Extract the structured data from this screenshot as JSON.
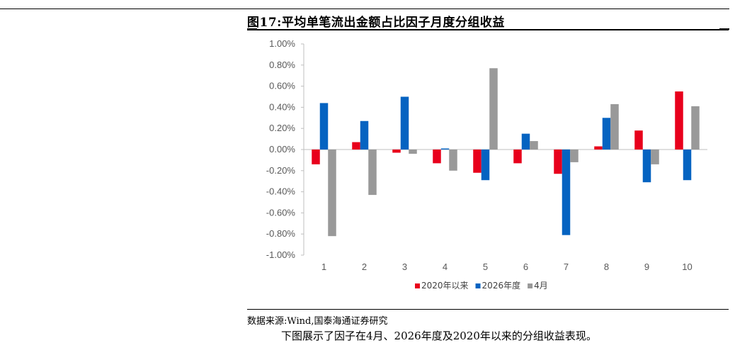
{
  "figure_title": "图17:平均单笔流出金额占比因子月度分组收益",
  "source_note": "数据来源:Wind,国泰海通证券研究",
  "paragraph_fragment": "下图展示了因子在4月、2026年度及2020年以来的分组收益表现。",
  "colors": {
    "s2020": "#E8001C",
    "s2026": "#0563C1",
    "sApr": "#999999",
    "axis": "#BFBFBF"
  },
  "chart_data": {
    "type": "bar",
    "title": "图17:平均单笔流出金额占比因子月度分组收益",
    "categories": [
      "1",
      "2",
      "3",
      "4",
      "5",
      "6",
      "7",
      "8",
      "9",
      "10"
    ],
    "series": [
      {
        "name": "2020年以来",
        "values": [
          -0.14,
          0.07,
          -0.03,
          -0.13,
          -0.22,
          -0.13,
          -0.23,
          0.03,
          0.18,
          0.55
        ]
      },
      {
        "name": "2026年度",
        "values": [
          0.44,
          0.27,
          0.5,
          0.01,
          -0.29,
          0.15,
          -0.81,
          0.3,
          -0.31,
          -0.29
        ]
      },
      {
        "name": "4月",
        "values": [
          -0.82,
          -0.43,
          -0.04,
          -0.2,
          0.77,
          0.08,
          -0.12,
          0.43,
          -0.14,
          0.41
        ]
      }
    ],
    "ylim": [
      -1.0,
      1.0
    ],
    "yticks": [
      "1.00%",
      "0.80%",
      "0.60%",
      "0.40%",
      "0.20%",
      "0.00%",
      "-0.20%",
      "-0.40%",
      "-0.60%",
      "-0.80%",
      "-1.00%"
    ],
    "xlabel": "",
    "ylabel": "",
    "legend_position": "bottom",
    "grid": false
  }
}
